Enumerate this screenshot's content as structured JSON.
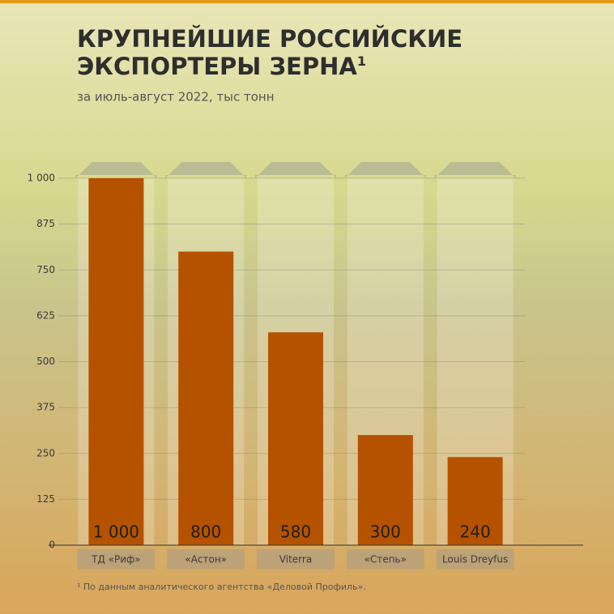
{
  "chart_data": {
    "type": "bar",
    "title_lines": [
      "КРУПНЕЙШИЕ РОССИЙСКИЕ",
      "ЭКСПОРТЕРЫ ЗЕРНА"
    ],
    "title_mark": "1",
    "subtitle": "за июль-август 2022, тыс тонн",
    "footnote": "¹ По данным аналитического агентства «Деловой Профиль».",
    "categories": [
      "ТД «Риф»",
      "«Астон»",
      "Viterra",
      "«Степь»",
      "Louis Dreyfus"
    ],
    "values": [
      1000,
      800,
      580,
      300,
      240
    ],
    "value_labels": [
      "1 000",
      "800",
      "580",
      "300",
      "240"
    ],
    "color": "#b55200",
    "ylim": [
      0,
      1000
    ],
    "yticks": [
      0,
      125,
      250,
      375,
      500,
      625,
      750,
      875,
      {
        "value": 1000,
        "label": "1 000"
      }
    ],
    "grid": true
  }
}
